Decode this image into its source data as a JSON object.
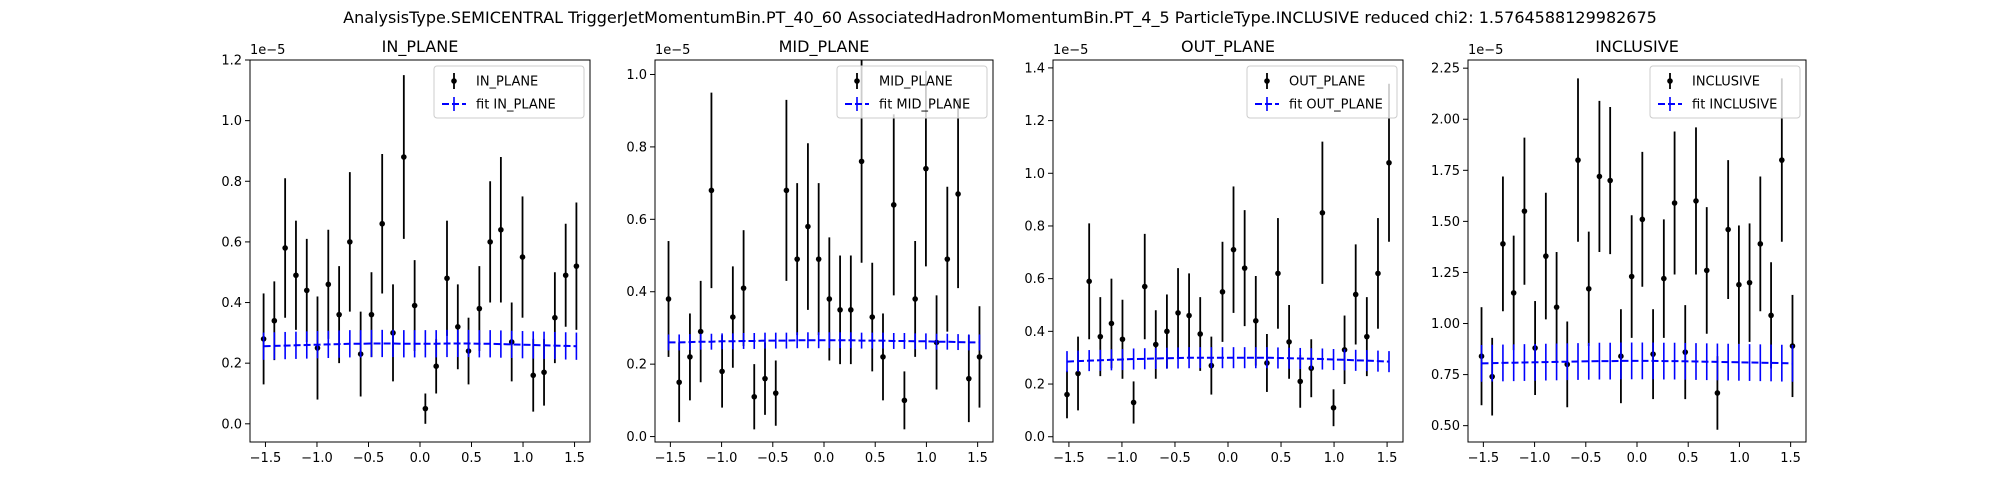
{
  "suptitle": "AnalysisType.SEMICENTRAL TriggerJetMomentumBin.PT_40_60 AssociatedHadronMomentumBin.PT_4_5 ParticleType.INCLUSIVE reduced chi2: 1.5764588129982675",
  "colors": {
    "data": "#000000",
    "fit": "#0000ff"
  },
  "chart_data": [
    {
      "type": "scatter",
      "title": "IN_PLANE",
      "xlabel": "",
      "ylabel": "",
      "offset_label": "1e−5",
      "xlim": [
        -1.65,
        1.65
      ],
      "ylim": [
        -0.06,
        1.2
      ],
      "xticks": [
        -1.5,
        -1.0,
        -0.5,
        0.0,
        0.5,
        1.0,
        1.5
      ],
      "xtick_labels": [
        "−1.5",
        "−1.0",
        "−0.5",
        "0.0",
        "0.5",
        "1.0",
        "1.5"
      ],
      "yticks": [
        0.0,
        0.2,
        0.4,
        0.6,
        0.8,
        1.0,
        1.2
      ],
      "ytick_labels": [
        "0.0",
        "0.2",
        "0.4",
        "0.6",
        "0.8",
        "1.0",
        "1.2"
      ],
      "legend": {
        "position": "top-right",
        "entries": [
          "IN_PLANE",
          "fit IN_PLANE"
        ]
      },
      "series": [
        {
          "name": "IN_PLANE",
          "kind": "data",
          "x": [
            -1.518,
            -1.414,
            -1.309,
            -1.204,
            -1.099,
            -0.995,
            -0.89,
            -0.785,
            -0.681,
            -0.576,
            -0.471,
            -0.367,
            -0.262,
            -0.157,
            -0.052,
            0.052,
            0.157,
            0.262,
            0.367,
            0.471,
            0.576,
            0.681,
            0.785,
            0.89,
            0.995,
            1.099,
            1.204,
            1.309,
            1.414,
            1.518
          ],
          "y": [
            0.28,
            0.34,
            0.58,
            0.49,
            0.44,
            0.25,
            0.46,
            0.36,
            0.6,
            0.23,
            0.36,
            0.66,
            0.3,
            0.88,
            0.39,
            0.05,
            0.19,
            0.48,
            0.32,
            0.24,
            0.38,
            0.6,
            0.64,
            0.27,
            0.55,
            0.16,
            0.17,
            0.35,
            0.49,
            0.52
          ],
          "yerr": [
            0.15,
            0.13,
            0.23,
            0.18,
            0.17,
            0.17,
            0.18,
            0.16,
            0.23,
            0.14,
            0.14,
            0.23,
            0.16,
            0.27,
            0.15,
            0.05,
            0.09,
            0.19,
            0.14,
            0.11,
            0.14,
            0.2,
            0.24,
            0.13,
            0.2,
            0.12,
            0.11,
            0.15,
            0.17,
            0.21
          ]
        },
        {
          "name": "fit IN_PLANE",
          "kind": "fit",
          "x": [
            -1.518,
            -1.414,
            -1.309,
            -1.204,
            -1.099,
            -0.995,
            -0.89,
            -0.785,
            -0.681,
            -0.576,
            -0.471,
            -0.367,
            -0.262,
            -0.157,
            -0.052,
            0.052,
            0.157,
            0.262,
            0.367,
            0.471,
            0.576,
            0.681,
            0.785,
            0.89,
            0.995,
            1.099,
            1.204,
            1.309,
            1.414,
            1.518
          ],
          "y": [
            0.256,
            0.257,
            0.258,
            0.259,
            0.26,
            0.261,
            0.262,
            0.263,
            0.264,
            0.264,
            0.265,
            0.265,
            0.265,
            0.264,
            0.264,
            0.264,
            0.264,
            0.265,
            0.265,
            0.265,
            0.264,
            0.264,
            0.263,
            0.262,
            0.261,
            0.26,
            0.259,
            0.258,
            0.257,
            0.256
          ],
          "yerr": [
            0.045,
            0.045,
            0.045,
            0.045,
            0.045,
            0.045,
            0.045,
            0.045,
            0.045,
            0.045,
            0.045,
            0.045,
            0.045,
            0.045,
            0.045,
            0.045,
            0.045,
            0.045,
            0.045,
            0.045,
            0.045,
            0.045,
            0.045,
            0.045,
            0.045,
            0.045,
            0.045,
            0.045,
            0.045,
            0.045
          ]
        }
      ]
    },
    {
      "type": "scatter",
      "title": "MID_PLANE",
      "xlabel": "",
      "ylabel": "",
      "offset_label": "1e−5",
      "xlim": [
        -1.65,
        1.65
      ],
      "ylim": [
        -0.015,
        1.04
      ],
      "xticks": [
        -1.5,
        -1.0,
        -0.5,
        0.0,
        0.5,
        1.0,
        1.5
      ],
      "xtick_labels": [
        "−1.5",
        "−1.0",
        "−0.5",
        "0.0",
        "0.5",
        "1.0",
        "1.5"
      ],
      "yticks": [
        0.0,
        0.2,
        0.4,
        0.6,
        0.8,
        1.0
      ],
      "ytick_labels": [
        "0.0",
        "0.2",
        "0.4",
        "0.6",
        "0.8",
        "1.0"
      ],
      "legend": {
        "position": "top-right",
        "entries": [
          "MID_PLANE",
          "fit MID_PLANE"
        ]
      },
      "series": [
        {
          "name": "MID_PLANE",
          "kind": "data",
          "x": [
            -1.518,
            -1.414,
            -1.309,
            -1.204,
            -1.099,
            -0.995,
            -0.89,
            -0.785,
            -0.681,
            -0.576,
            -0.471,
            -0.367,
            -0.262,
            -0.157,
            -0.052,
            0.052,
            0.157,
            0.262,
            0.367,
            0.471,
            0.576,
            0.681,
            0.785,
            0.89,
            0.995,
            1.099,
            1.204,
            1.309,
            1.414,
            1.518
          ],
          "y": [
            0.38,
            0.15,
            0.22,
            0.29,
            0.68,
            0.18,
            0.33,
            0.41,
            0.11,
            0.16,
            0.12,
            0.68,
            0.49,
            0.58,
            0.49,
            0.38,
            0.35,
            0.35,
            0.76,
            0.33,
            0.22,
            0.64,
            0.1,
            0.38,
            0.74,
            0.26,
            0.49,
            0.67,
            0.16,
            0.22
          ],
          "yerr": [
            0.16,
            0.11,
            0.12,
            0.14,
            0.27,
            0.1,
            0.14,
            0.16,
            0.09,
            0.1,
            0.09,
            0.25,
            0.21,
            0.23,
            0.21,
            0.17,
            0.15,
            0.15,
            0.28,
            0.15,
            0.12,
            0.25,
            0.08,
            0.16,
            0.27,
            0.13,
            0.2,
            0.26,
            0.12,
            0.14
          ]
        },
        {
          "name": "fit MID_PLANE",
          "kind": "fit",
          "x": [
            -1.518,
            -1.414,
            -1.309,
            -1.204,
            -1.099,
            -0.995,
            -0.89,
            -0.785,
            -0.681,
            -0.576,
            -0.471,
            -0.367,
            -0.262,
            -0.157,
            -0.052,
            0.052,
            0.157,
            0.262,
            0.367,
            0.471,
            0.576,
            0.681,
            0.785,
            0.89,
            0.995,
            1.099,
            1.204,
            1.309,
            1.414,
            1.518
          ],
          "y": [
            0.26,
            0.26,
            0.261,
            0.262,
            0.262,
            0.263,
            0.263,
            0.264,
            0.264,
            0.265,
            0.265,
            0.265,
            0.266,
            0.266,
            0.266,
            0.266,
            0.266,
            0.266,
            0.265,
            0.265,
            0.265,
            0.264,
            0.264,
            0.263,
            0.263,
            0.262,
            0.262,
            0.261,
            0.26,
            0.26
          ],
          "yerr": [
            0.022,
            0.022,
            0.022,
            0.022,
            0.022,
            0.022,
            0.022,
            0.022,
            0.022,
            0.022,
            0.022,
            0.022,
            0.022,
            0.022,
            0.022,
            0.022,
            0.022,
            0.022,
            0.022,
            0.022,
            0.022,
            0.022,
            0.022,
            0.022,
            0.022,
            0.022,
            0.022,
            0.022,
            0.022,
            0.022
          ]
        }
      ]
    },
    {
      "type": "scatter",
      "title": "OUT_PLANE",
      "xlabel": "",
      "ylabel": "",
      "offset_label": "1e−5",
      "xlim": [
        -1.65,
        1.65
      ],
      "ylim": [
        -0.02,
        1.43
      ],
      "xticks": [
        -1.5,
        -1.0,
        -0.5,
        0.0,
        0.5,
        1.0,
        1.5
      ],
      "xtick_labels": [
        "−1.5",
        "−1.0",
        "−0.5",
        "0.0",
        "0.5",
        "1.0",
        "1.5"
      ],
      "yticks": [
        0.0,
        0.2,
        0.4,
        0.6,
        0.8,
        1.0,
        1.2,
        1.4
      ],
      "ytick_labels": [
        "0.0",
        "0.2",
        "0.4",
        "0.6",
        "0.8",
        "1.0",
        "1.2",
        "1.4"
      ],
      "legend": {
        "position": "top-right",
        "entries": [
          "OUT_PLANE",
          "fit OUT_PLANE"
        ]
      },
      "series": [
        {
          "name": "OUT_PLANE",
          "kind": "data",
          "x": [
            -1.518,
            -1.414,
            -1.309,
            -1.204,
            -1.099,
            -0.995,
            -0.89,
            -0.785,
            -0.681,
            -0.576,
            -0.471,
            -0.367,
            -0.262,
            -0.157,
            -0.052,
            0.052,
            0.157,
            0.262,
            0.367,
            0.471,
            0.576,
            0.681,
            0.785,
            0.89,
            0.995,
            1.099,
            1.204,
            1.309,
            1.414,
            1.518
          ],
          "y": [
            0.16,
            0.24,
            0.59,
            0.38,
            0.43,
            0.37,
            0.13,
            0.57,
            0.35,
            0.4,
            0.47,
            0.46,
            0.39,
            0.27,
            0.55,
            0.71,
            0.64,
            0.44,
            0.28,
            0.62,
            0.36,
            0.21,
            0.26,
            0.85,
            0.11,
            0.33,
            0.54,
            0.38,
            0.62,
            1.04
          ],
          "yerr": [
            0.09,
            0.14,
            0.22,
            0.15,
            0.17,
            0.15,
            0.08,
            0.2,
            0.13,
            0.14,
            0.17,
            0.16,
            0.14,
            0.11,
            0.19,
            0.24,
            0.22,
            0.17,
            0.11,
            0.21,
            0.14,
            0.1,
            0.11,
            0.27,
            0.07,
            0.13,
            0.19,
            0.15,
            0.21,
            0.3
          ]
        },
        {
          "name": "fit OUT_PLANE",
          "kind": "fit",
          "x": [
            -1.518,
            -1.414,
            -1.309,
            -1.204,
            -1.099,
            -0.995,
            -0.89,
            -0.785,
            -0.681,
            -0.576,
            -0.471,
            -0.367,
            -0.262,
            -0.157,
            -0.052,
            0.052,
            0.157,
            0.262,
            0.367,
            0.471,
            0.576,
            0.681,
            0.785,
            0.89,
            0.995,
            1.099,
            1.204,
            1.309,
            1.414,
            1.518
          ],
          "y": [
            0.285,
            0.287,
            0.289,
            0.29,
            0.292,
            0.293,
            0.295,
            0.296,
            0.297,
            0.298,
            0.299,
            0.3,
            0.3,
            0.3,
            0.3,
            0.3,
            0.3,
            0.3,
            0.3,
            0.299,
            0.298,
            0.297,
            0.296,
            0.295,
            0.293,
            0.292,
            0.29,
            0.289,
            0.287,
            0.285
          ],
          "yerr": [
            0.04,
            0.04,
            0.04,
            0.04,
            0.04,
            0.04,
            0.04,
            0.04,
            0.04,
            0.04,
            0.04,
            0.04,
            0.04,
            0.04,
            0.04,
            0.04,
            0.04,
            0.04,
            0.04,
            0.04,
            0.04,
            0.04,
            0.04,
            0.04,
            0.04,
            0.04,
            0.04,
            0.04,
            0.04,
            0.04
          ]
        }
      ]
    },
    {
      "type": "scatter",
      "title": "INCLUSIVE",
      "xlabel": "",
      "ylabel": "",
      "offset_label": "1e−5",
      "xlim": [
        -1.65,
        1.65
      ],
      "ylim": [
        0.42,
        2.29
      ],
      "xticks": [
        -1.5,
        -1.0,
        -0.5,
        0.0,
        0.5,
        1.0,
        1.5
      ],
      "xtick_labels": [
        "−1.5",
        "−1.0",
        "−0.5",
        "0.0",
        "0.5",
        "1.0",
        "1.5"
      ],
      "yticks": [
        0.5,
        0.75,
        1.0,
        1.25,
        1.5,
        1.75,
        2.0,
        2.25
      ],
      "ytick_labels": [
        "0.50",
        "0.75",
        "1.00",
        "1.25",
        "1.50",
        "1.75",
        "2.00",
        "2.25"
      ],
      "legend": {
        "position": "top-right",
        "entries": [
          "INCLUSIVE",
          "fit INCLUSIVE"
        ]
      },
      "series": [
        {
          "name": "INCLUSIVE",
          "kind": "data",
          "x": [
            -1.518,
            -1.414,
            -1.309,
            -1.204,
            -1.099,
            -0.995,
            -0.89,
            -0.785,
            -0.681,
            -0.576,
            -0.471,
            -0.367,
            -0.262,
            -0.157,
            -0.052,
            0.052,
            0.157,
            0.262,
            0.367,
            0.471,
            0.576,
            0.681,
            0.785,
            0.89,
            0.995,
            1.099,
            1.204,
            1.309,
            1.414,
            1.518
          ],
          "y": [
            0.84,
            0.74,
            1.39,
            1.15,
            1.55,
            0.88,
            1.33,
            1.08,
            0.8,
            1.8,
            1.17,
            1.72,
            1.7,
            0.84,
            1.23,
            1.51,
            0.85,
            1.22,
            1.59,
            0.86,
            1.6,
            1.26,
            0.66,
            1.46,
            1.19,
            1.2,
            1.39,
            1.04,
            1.8,
            0.89
          ],
          "yerr": [
            0.24,
            0.19,
            0.33,
            0.28,
            0.36,
            0.23,
            0.31,
            0.27,
            0.21,
            0.4,
            0.28,
            0.37,
            0.36,
            0.23,
            0.3,
            0.33,
            0.22,
            0.29,
            0.35,
            0.23,
            0.36,
            0.31,
            0.18,
            0.34,
            0.29,
            0.29,
            0.33,
            0.26,
            0.4,
            0.25
          ]
        },
        {
          "name": "fit INCLUSIVE",
          "kind": "fit",
          "x": [
            -1.518,
            -1.414,
            -1.309,
            -1.204,
            -1.099,
            -0.995,
            -0.89,
            -0.785,
            -0.681,
            -0.576,
            -0.471,
            -0.367,
            -0.262,
            -0.157,
            -0.052,
            0.052,
            0.157,
            0.262,
            0.367,
            0.471,
            0.576,
            0.681,
            0.785,
            0.89,
            0.995,
            1.099,
            1.204,
            1.309,
            1.414,
            1.518
          ],
          "y": [
            0.805,
            0.806,
            0.807,
            0.808,
            0.809,
            0.81,
            0.811,
            0.812,
            0.813,
            0.814,
            0.815,
            0.816,
            0.816,
            0.817,
            0.817,
            0.817,
            0.817,
            0.816,
            0.816,
            0.815,
            0.814,
            0.813,
            0.812,
            0.811,
            0.81,
            0.809,
            0.808,
            0.807,
            0.806,
            0.805
          ],
          "yerr": [
            0.09,
            0.09,
            0.09,
            0.09,
            0.09,
            0.09,
            0.09,
            0.09,
            0.09,
            0.09,
            0.09,
            0.09,
            0.09,
            0.09,
            0.09,
            0.09,
            0.09,
            0.09,
            0.09,
            0.09,
            0.09,
            0.09,
            0.09,
            0.09,
            0.09,
            0.09,
            0.09,
            0.09,
            0.09,
            0.09
          ]
        }
      ]
    }
  ]
}
